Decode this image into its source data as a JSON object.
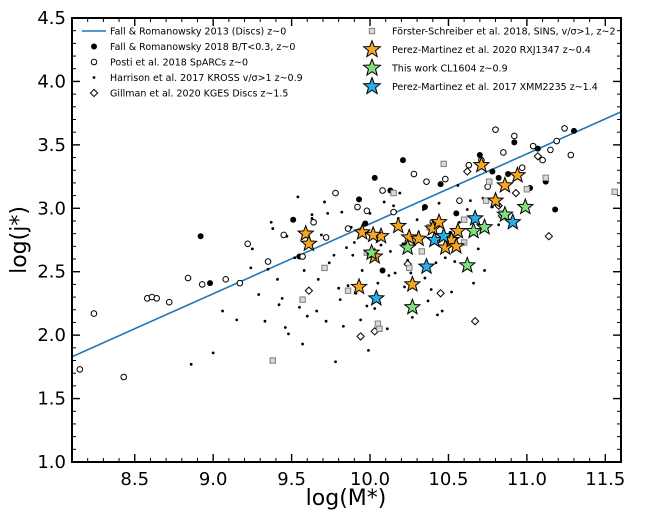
{
  "chart_data": {
    "type": "scatter",
    "xlabel": "log(M*)",
    "ylabel": "log(j*)",
    "xlim": [
      8.1,
      11.6
    ],
    "ylim": [
      1.0,
      4.5
    ],
    "grid": false,
    "legend_position": "top",
    "x_ticks": [
      8.5,
      9.0,
      9.5,
      10.0,
      10.5,
      11.0,
      11.5
    ],
    "x_tick_labels": [
      "8.5",
      "9.0",
      "9.5",
      "10.0",
      "10.5",
      "11.0",
      "11.5"
    ],
    "y_ticks": [
      1.0,
      1.5,
      2.0,
      2.5,
      3.0,
      3.5,
      4.0,
      4.5
    ],
    "y_tick_labels": [
      "1.0",
      "1.5",
      "2.0",
      "2.5",
      "3.0",
      "3.5",
      "4.0",
      "4.5"
    ],
    "relation": {
      "name": "Fall & Romanowsky 2013 (Discs) z~0",
      "color": "#1f77b4",
      "x": [
        8.1,
        11.6
      ],
      "y": [
        1.83,
        3.76
      ]
    },
    "series": [
      {
        "name": "Fall & Romanowsky 2018 B/T<0.3, z~0",
        "marker": "filled-circle",
        "color": "#000000",
        "x": [
          8.92,
          8.98,
          9.51,
          9.55,
          9.93,
          9.97,
          10.03,
          10.08,
          10.13,
          10.21,
          10.35,
          10.45,
          10.55,
          10.7,
          10.78,
          10.82,
          10.88,
          10.92,
          11.02,
          11.07,
          11.12,
          11.18,
          11.3
        ],
        "y": [
          2.78,
          2.41,
          2.91,
          2.62,
          3.07,
          2.88,
          3.24,
          2.51,
          3.14,
          3.38,
          3.01,
          3.19,
          2.96,
          3.42,
          3.29,
          3.24,
          3.27,
          3.52,
          3.16,
          3.47,
          3.21,
          2.99,
          3.61
        ]
      },
      {
        "name": "Posti et al. 2018 SpARCs z~0",
        "marker": "open-circle",
        "color": "#000000",
        "x": [
          8.15,
          8.24,
          8.43,
          8.58,
          8.61,
          8.64,
          8.72,
          8.84,
          8.93,
          9.08,
          9.17,
          9.22,
          9.35,
          9.45,
          9.57,
          9.64,
          9.78,
          9.86,
          9.92,
          10.08,
          10.15,
          10.28,
          10.36,
          10.48,
          10.57,
          10.71,
          10.8,
          10.85,
          10.92,
          10.97,
          11.04,
          11.1,
          11.15,
          11.19,
          11.24,
          11.28,
          10.63,
          10.75,
          9.72,
          9.98,
          10.4
        ],
        "y": [
          1.73,
          2.17,
          1.67,
          2.29,
          2.3,
          2.29,
          2.26,
          2.45,
          2.4,
          2.44,
          2.41,
          2.72,
          2.58,
          2.79,
          2.62,
          2.89,
          3.12,
          2.84,
          3.01,
          3.14,
          2.97,
          3.27,
          3.21,
          3.23,
          3.06,
          3.38,
          3.62,
          3.44,
          3.57,
          3.32,
          3.49,
          3.38,
          3.46,
          3.53,
          3.63,
          3.42,
          3.34,
          3.17,
          2.77,
          2.98,
          2.89
        ]
      },
      {
        "name": "Harrison et al. 2017 KROSS v/σ>1 z~0.9",
        "marker": "small-dot",
        "color": "#000000",
        "x": [
          9.41,
          9.47,
          9.58,
          9.63,
          9.77,
          9.86,
          9.72,
          9.81,
          9.9,
          9.55,
          9.95,
          10.0,
          9.66,
          9.88,
          10.13,
          10.22,
          10.31,
          10.42,
          10.52,
          10.6,
          10.69,
          10.78,
          10.19,
          10.26,
          10.44,
          10.58,
          9.6,
          9.67,
          9.83,
          9.91,
          10.05,
          10.18,
          10.27,
          10.39,
          10.48,
          10.57,
          10.66,
          9.44,
          9.52,
          9.74,
          9.98,
          10.09,
          10.21,
          10.35,
          10.46,
          10.54,
          10.64,
          10.73,
          9.35,
          9.29,
          9.25,
          9.33,
          9.48,
          9.63,
          9.78,
          9.94,
          10.07,
          10.24,
          10.11,
          9.82,
          9.69,
          9.57,
          9.46,
          9.38,
          10.37,
          10.51,
          9.89,
          10.03,
          10.16,
          10.3,
          10.43,
          10.62,
          9.71,
          9.85,
          9.99,
          10.12,
          9.24,
          9.06,
          9.0,
          8.86,
          9.15,
          9.37,
          9.54,
          9.73,
          9.96,
          10.15,
          10.34,
          10.56,
          10.72,
          10.82,
          9.42,
          9.8
        ],
        "y": [
          2.44,
          2.78,
          2.51,
          2.92,
          2.63,
          2.39,
          2.11,
          2.28,
          2.73,
          2.22,
          2.51,
          2.96,
          2.19,
          2.85,
          2.66,
          2.38,
          2.81,
          2.57,
          2.34,
          2.92,
          2.68,
          3.01,
          3.12,
          2.49,
          3.04,
          2.71,
          2.15,
          2.44,
          2.07,
          2.33,
          2.41,
          2.92,
          2.14,
          2.36,
          2.61,
          2.89,
          2.41,
          2.29,
          2.61,
          2.57,
          2.23,
          3.05,
          2.72,
          2.45,
          2.19,
          2.58,
          3.06,
          2.51,
          2.52,
          2.32,
          2.68,
          2.11,
          2.01,
          2.95,
          1.79,
          2.12,
          2.71,
          2.59,
          2.05,
          2.97,
          2.79,
          1.93,
          2.06,
          2.84,
          2.27,
          2.81,
          2.63,
          2.21,
          2.49,
          2.91,
          2.16,
          2.99,
          3.05,
          2.69,
          1.88,
          2.47,
          2.53,
          2.19,
          1.86,
          1.77,
          2.12,
          2.89,
          3.09,
          2.96,
          2.82,
          3.02,
          2.99,
          3.18,
          3.08,
          2.87,
          2.24,
          2.37
        ]
      },
      {
        "name": "Gillman et al. 2020 KGES Discs z~1.5",
        "marker": "open-diamond",
        "color": "#000000",
        "x": [
          9.94,
          9.61,
          10.03,
          10.24,
          10.45,
          10.62,
          10.67,
          10.84,
          10.93,
          11.07,
          11.14,
          10.02,
          10.82
        ],
        "y": [
          1.99,
          2.35,
          2.03,
          2.56,
          2.33,
          3.29,
          2.11,
          2.94,
          3.12,
          3.41,
          2.78,
          2.62,
          3.02
        ]
      },
      {
        "name": "Förster-Schreiber et al. 2018, SINS, v/σ>1, z~2",
        "marker": "open-square",
        "color": "#7f7f7f",
        "x": [
          9.38,
          9.57,
          9.71,
          9.86,
          9.98,
          10.05,
          10.15,
          10.25,
          10.38,
          10.47,
          10.6,
          10.74,
          10.84,
          11.0,
          11.12,
          11.56,
          10.06,
          10.33,
          10.6,
          10.76
        ],
        "y": [
          1.8,
          2.28,
          2.53,
          2.35,
          2.65,
          2.09,
          3.12,
          2.53,
          2.85,
          3.35,
          2.91,
          3.06,
          2.96,
          3.15,
          3.24,
          3.13,
          2.05,
          2.66,
          2.73,
          3.21
        ]
      },
      {
        "name": "Perez-Martinez et al. 2020 RXJ1347 z~0.4",
        "marker": "star",
        "color": "#f5a623",
        "x": [
          9.59,
          9.61,
          9.93,
          9.95,
          10.03,
          10.07,
          10.18,
          10.25,
          10.27,
          10.31,
          10.4,
          10.44,
          10.48,
          10.52,
          10.56,
          10.71,
          10.8,
          10.86,
          10.94,
          10.02,
          10.55
        ],
        "y": [
          2.8,
          2.72,
          2.38,
          2.81,
          2.62,
          2.78,
          2.86,
          2.77,
          2.4,
          2.76,
          2.84,
          2.89,
          2.69,
          2.75,
          2.82,
          3.34,
          3.06,
          3.18,
          3.26,
          2.79,
          2.7
        ]
      },
      {
        "name": "This work CL1604 z~0.9",
        "marker": "star",
        "color": "#7fe07f",
        "x": [
          10.01,
          10.24,
          10.27,
          10.62,
          10.66,
          10.73,
          10.86,
          10.99
        ],
        "y": [
          2.65,
          2.69,
          2.22,
          2.55,
          2.82,
          2.85,
          2.95,
          3.01
        ]
      },
      {
        "name": "Perez-Martinez et al. 2017 XMM2235 z~1.4",
        "marker": "star",
        "color": "#29aee8",
        "x": [
          10.04,
          10.36,
          10.41,
          10.47,
          10.67,
          10.91
        ],
        "y": [
          2.29,
          2.54,
          2.75,
          2.78,
          2.92,
          2.89
        ]
      }
    ]
  }
}
